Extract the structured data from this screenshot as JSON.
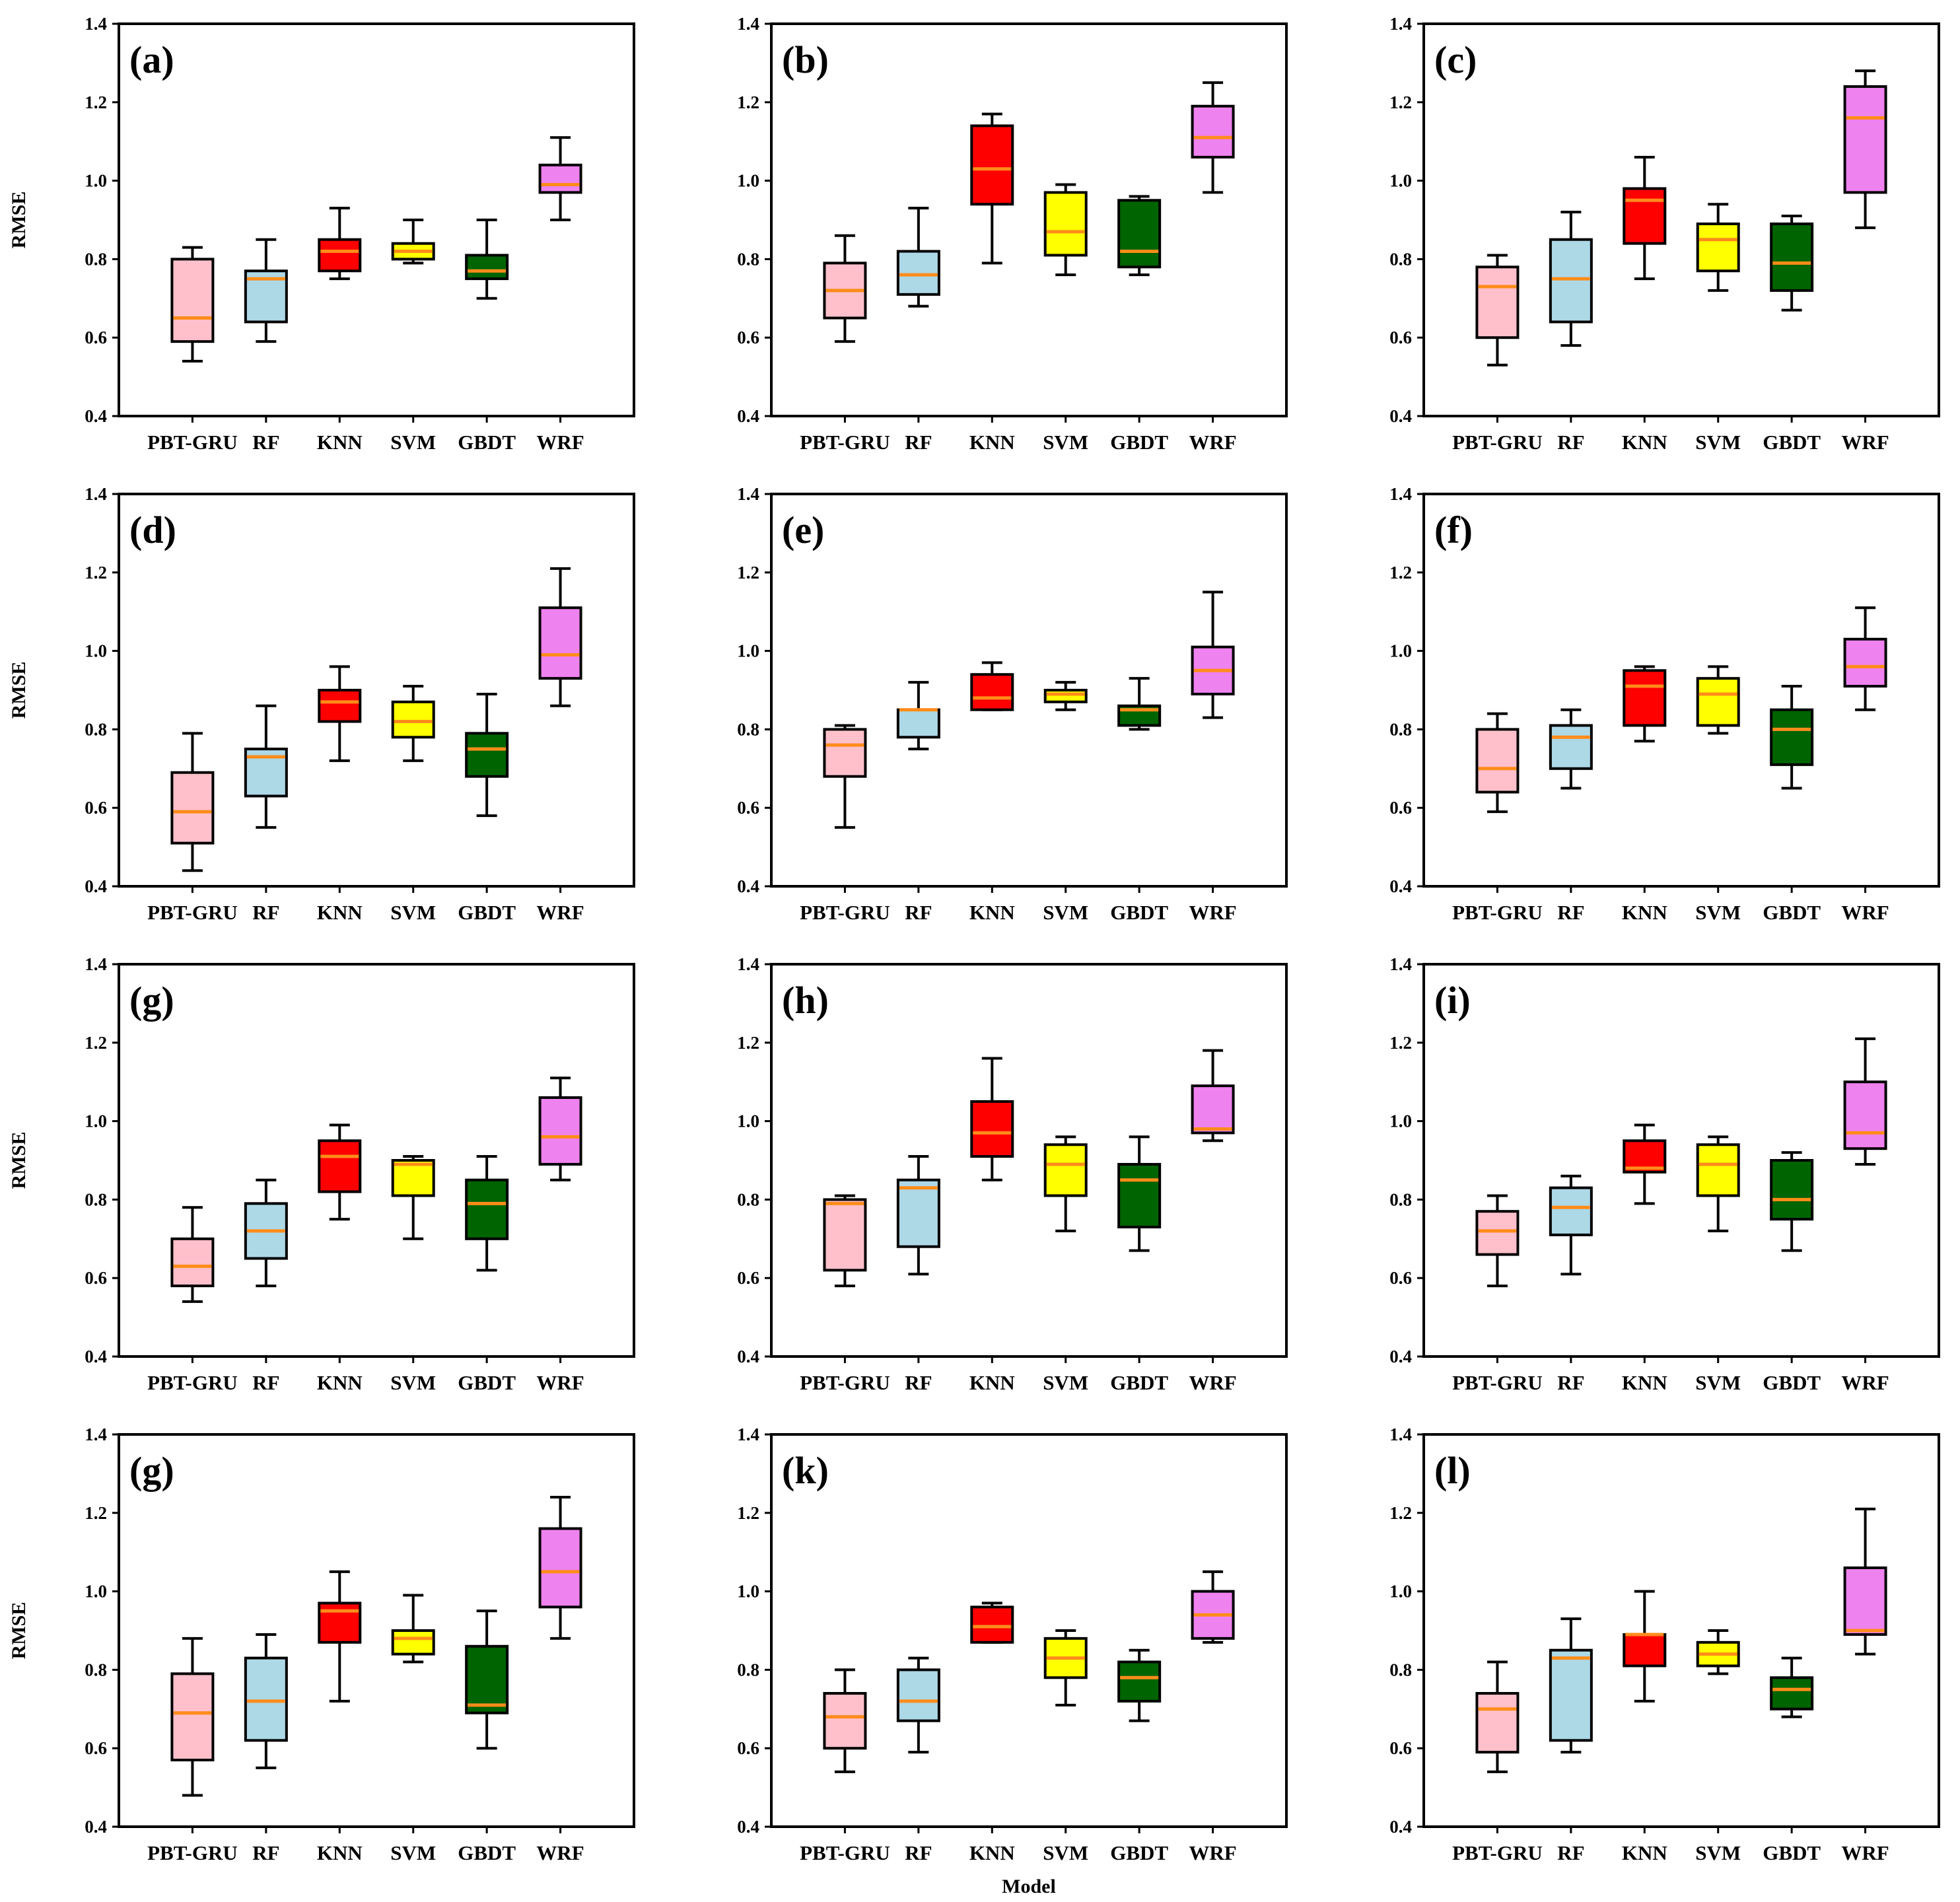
{
  "colors": {
    "PBT-GRU": "#ffc0cb",
    "RF": "#add8e6",
    "KNN": "#ff0000",
    "SVM": "#ffff00",
    "GBDT": "#006400",
    "WRF": "#ee82ee",
    "median": "#ff8c1a"
  },
  "chart_data": [
    {
      "type": "box",
      "panel_label": "(a)",
      "ylabel": "RMSE",
      "ylim": [
        0.4,
        1.4
      ],
      "yticks": [
        "0.4",
        "0.6",
        "0.8",
        "1.0",
        "1.2",
        "1.4"
      ],
      "categories": [
        "PBT-GRU",
        "RF",
        "KNN",
        "SVM",
        "GBDT",
        "WRF"
      ],
      "boxes": [
        [
          0.54,
          0.59,
          0.65,
          0.8,
          0.83
        ],
        [
          0.59,
          0.64,
          0.75,
          0.77,
          0.85
        ],
        [
          0.75,
          0.77,
          0.82,
          0.85,
          0.93
        ],
        [
          0.79,
          0.8,
          0.82,
          0.84,
          0.9
        ],
        [
          0.7,
          0.75,
          0.77,
          0.81,
          0.9
        ],
        [
          0.9,
          0.97,
          0.99,
          1.04,
          1.11
        ]
      ]
    },
    {
      "type": "box",
      "panel_label": "(b)",
      "ylabel": "",
      "ylim": [
        0.4,
        1.4
      ],
      "yticks": [
        "0.4",
        "0.6",
        "0.8",
        "1.0",
        "1.2",
        "1.4"
      ],
      "categories": [
        "PBT-GRU",
        "RF",
        "KNN",
        "SVM",
        "GBDT",
        "WRF"
      ],
      "boxes": [
        [
          0.59,
          0.65,
          0.72,
          0.79,
          0.86
        ],
        [
          0.68,
          0.71,
          0.76,
          0.82,
          0.93
        ],
        [
          0.79,
          0.94,
          1.03,
          1.14,
          1.17
        ],
        [
          0.76,
          0.81,
          0.87,
          0.97,
          0.99
        ],
        [
          0.76,
          0.78,
          0.82,
          0.95,
          0.96
        ],
        [
          0.97,
          1.06,
          1.11,
          1.19,
          1.25
        ]
      ]
    },
    {
      "type": "box",
      "panel_label": "(c)",
      "ylabel": "",
      "ylim": [
        0.4,
        1.4
      ],
      "yticks": [
        "0.4",
        "0.6",
        "0.8",
        "1.0",
        "1.2",
        "1.4"
      ],
      "categories": [
        "PBT-GRU",
        "RF",
        "KNN",
        "SVM",
        "GBDT",
        "WRF"
      ],
      "boxes": [
        [
          0.53,
          0.6,
          0.73,
          0.78,
          0.81
        ],
        [
          0.58,
          0.64,
          0.75,
          0.85,
          0.92
        ],
        [
          0.75,
          0.84,
          0.95,
          0.98,
          1.06
        ],
        [
          0.72,
          0.77,
          0.85,
          0.89,
          0.94
        ],
        [
          0.67,
          0.72,
          0.79,
          0.89,
          0.91
        ],
        [
          0.88,
          0.97,
          1.16,
          1.24,
          1.28
        ]
      ]
    },
    {
      "type": "box",
      "panel_label": "(d)",
      "ylabel": "RMSE",
      "ylim": [
        0.4,
        1.4
      ],
      "yticks": [
        "0.4",
        "0.6",
        "0.8",
        "1.0",
        "1.2",
        "1.4"
      ],
      "categories": [
        "PBT-GRU",
        "RF",
        "KNN",
        "SVM",
        "GBDT",
        "WRF"
      ],
      "boxes": [
        [
          0.44,
          0.51,
          0.59,
          0.69,
          0.79
        ],
        [
          0.55,
          0.63,
          0.73,
          0.75,
          0.86
        ],
        [
          0.72,
          0.82,
          0.87,
          0.9,
          0.96
        ],
        [
          0.72,
          0.78,
          0.82,
          0.87,
          0.91
        ],
        [
          0.58,
          0.68,
          0.75,
          0.79,
          0.89
        ],
        [
          0.86,
          0.93,
          0.99,
          1.11,
          1.21
        ]
      ]
    },
    {
      "type": "box",
      "panel_label": "(e)",
      "ylabel": "",
      "ylim": [
        0.4,
        1.4
      ],
      "yticks": [
        "0.4",
        "0.6",
        "0.8",
        "1.0",
        "1.2",
        "1.4"
      ],
      "categories": [
        "PBT-GRU",
        "RF",
        "KNN",
        "SVM",
        "GBDT",
        "WRF"
      ],
      "boxes": [
        [
          0.55,
          0.68,
          0.76,
          0.8,
          0.81
        ],
        [
          0.75,
          0.78,
          0.85,
          0.85,
          0.92
        ],
        [
          0.85,
          0.85,
          0.88,
          0.94,
          0.97
        ],
        [
          0.85,
          0.87,
          0.89,
          0.9,
          0.92
        ],
        [
          0.8,
          0.81,
          0.85,
          0.86,
          0.93
        ],
        [
          0.83,
          0.89,
          0.95,
          1.01,
          1.15
        ]
      ]
    },
    {
      "type": "box",
      "panel_label": "(f)",
      "ylabel": "",
      "ylim": [
        0.4,
        1.4
      ],
      "yticks": [
        "0.4",
        "0.6",
        "0.8",
        "1.0",
        "1.2",
        "1.4"
      ],
      "categories": [
        "PBT-GRU",
        "RF",
        "KNN",
        "SVM",
        "GBDT",
        "WRF"
      ],
      "boxes": [
        [
          0.59,
          0.64,
          0.7,
          0.8,
          0.84
        ],
        [
          0.65,
          0.7,
          0.78,
          0.81,
          0.85
        ],
        [
          0.77,
          0.81,
          0.91,
          0.95,
          0.96
        ],
        [
          0.79,
          0.81,
          0.89,
          0.93,
          0.96
        ],
        [
          0.65,
          0.71,
          0.8,
          0.85,
          0.91
        ],
        [
          0.85,
          0.91,
          0.96,
          1.03,
          1.11
        ]
      ]
    },
    {
      "type": "box",
      "panel_label": "(g)",
      "ylabel": "RMSE",
      "ylim": [
        0.4,
        1.4
      ],
      "yticks": [
        "0.4",
        "0.6",
        "0.8",
        "1.0",
        "1.2",
        "1.4"
      ],
      "categories": [
        "PBT-GRU",
        "RF",
        "KNN",
        "SVM",
        "GBDT",
        "WRF"
      ],
      "boxes": [
        [
          0.54,
          0.58,
          0.63,
          0.7,
          0.78
        ],
        [
          0.58,
          0.65,
          0.72,
          0.79,
          0.85
        ],
        [
          0.75,
          0.82,
          0.91,
          0.95,
          0.99
        ],
        [
          0.7,
          0.81,
          0.89,
          0.9,
          0.91
        ],
        [
          0.62,
          0.7,
          0.79,
          0.85,
          0.91
        ],
        [
          0.85,
          0.89,
          0.96,
          1.06,
          1.11
        ]
      ]
    },
    {
      "type": "box",
      "panel_label": "(h)",
      "ylabel": "",
      "ylim": [
        0.4,
        1.4
      ],
      "yticks": [
        "0.4",
        "0.6",
        "0.8",
        "1.0",
        "1.2",
        "1.4"
      ],
      "categories": [
        "PBT-GRU",
        "RF",
        "KNN",
        "SVM",
        "GBDT",
        "WRF"
      ],
      "boxes": [
        [
          0.58,
          0.62,
          0.79,
          0.8,
          0.81
        ],
        [
          0.61,
          0.68,
          0.83,
          0.85,
          0.91
        ],
        [
          0.85,
          0.91,
          0.97,
          1.05,
          1.16
        ],
        [
          0.72,
          0.81,
          0.89,
          0.94,
          0.96
        ],
        [
          0.67,
          0.73,
          0.85,
          0.89,
          0.96
        ],
        [
          0.95,
          0.97,
          0.98,
          1.09,
          1.18
        ]
      ]
    },
    {
      "type": "box",
      "panel_label": "(i)",
      "ylabel": "",
      "ylim": [
        0.4,
        1.4
      ],
      "yticks": [
        "0.4",
        "0.6",
        "0.8",
        "1.0",
        "1.2",
        "1.4"
      ],
      "categories": [
        "PBT-GRU",
        "RF",
        "KNN",
        "SVM",
        "GBDT",
        "WRF"
      ],
      "boxes": [
        [
          0.58,
          0.66,
          0.72,
          0.77,
          0.81
        ],
        [
          0.61,
          0.71,
          0.78,
          0.83,
          0.86
        ],
        [
          0.79,
          0.87,
          0.88,
          0.95,
          0.99
        ],
        [
          0.72,
          0.81,
          0.89,
          0.94,
          0.96
        ],
        [
          0.67,
          0.75,
          0.8,
          0.9,
          0.92
        ],
        [
          0.89,
          0.93,
          0.97,
          1.1,
          1.21
        ]
      ]
    },
    {
      "type": "box",
      "panel_label": "(g)",
      "ylabel": "RMSE",
      "ylim": [
        0.4,
        1.4
      ],
      "yticks": [
        "0.4",
        "0.6",
        "0.8",
        "1.0",
        "1.2",
        "1.4"
      ],
      "categories": [
        "PBT-GRU",
        "RF",
        "KNN",
        "SVM",
        "GBDT",
        "WRF"
      ],
      "boxes": [
        [
          0.48,
          0.57,
          0.69,
          0.79,
          0.88
        ],
        [
          0.55,
          0.62,
          0.72,
          0.83,
          0.89
        ],
        [
          0.72,
          0.87,
          0.95,
          0.97,
          1.05
        ],
        [
          0.82,
          0.84,
          0.88,
          0.9,
          0.99
        ],
        [
          0.6,
          0.69,
          0.71,
          0.86,
          0.95
        ],
        [
          0.88,
          0.96,
          1.05,
          1.16,
          1.24
        ]
      ]
    },
    {
      "type": "box",
      "panel_label": "(k)",
      "ylabel": "",
      "xlabel": "Model",
      "ylim": [
        0.4,
        1.4
      ],
      "yticks": [
        "0.4",
        "0.6",
        "0.8",
        "1.0",
        "1.2",
        "1.4"
      ],
      "categories": [
        "PBT-GRU",
        "RF",
        "KNN",
        "SVM",
        "GBDT",
        "WRF"
      ],
      "boxes": [
        [
          0.54,
          0.6,
          0.68,
          0.74,
          0.8
        ],
        [
          0.59,
          0.67,
          0.72,
          0.8,
          0.83
        ],
        [
          0.87,
          0.87,
          0.91,
          0.96,
          0.97
        ],
        [
          0.71,
          0.78,
          0.83,
          0.88,
          0.9
        ],
        [
          0.67,
          0.72,
          0.78,
          0.82,
          0.85
        ],
        [
          0.87,
          0.88,
          0.94,
          1.0,
          1.05
        ]
      ]
    },
    {
      "type": "box",
      "panel_label": "(l)",
      "ylabel": "",
      "ylim": [
        0.4,
        1.4
      ],
      "yticks": [
        "0.4",
        "0.6",
        "0.8",
        "1.0",
        "1.2",
        "1.4"
      ],
      "categories": [
        "PBT-GRU",
        "RF",
        "KNN",
        "SVM",
        "GBDT",
        "WRF"
      ],
      "boxes": [
        [
          0.54,
          0.59,
          0.7,
          0.74,
          0.82
        ],
        [
          0.59,
          0.62,
          0.83,
          0.85,
          0.93
        ],
        [
          0.72,
          0.81,
          0.89,
          0.89,
          1.0
        ],
        [
          0.79,
          0.81,
          0.84,
          0.87,
          0.9
        ],
        [
          0.68,
          0.7,
          0.75,
          0.78,
          0.83
        ],
        [
          0.84,
          0.89,
          0.9,
          1.06,
          1.21
        ]
      ]
    }
  ]
}
